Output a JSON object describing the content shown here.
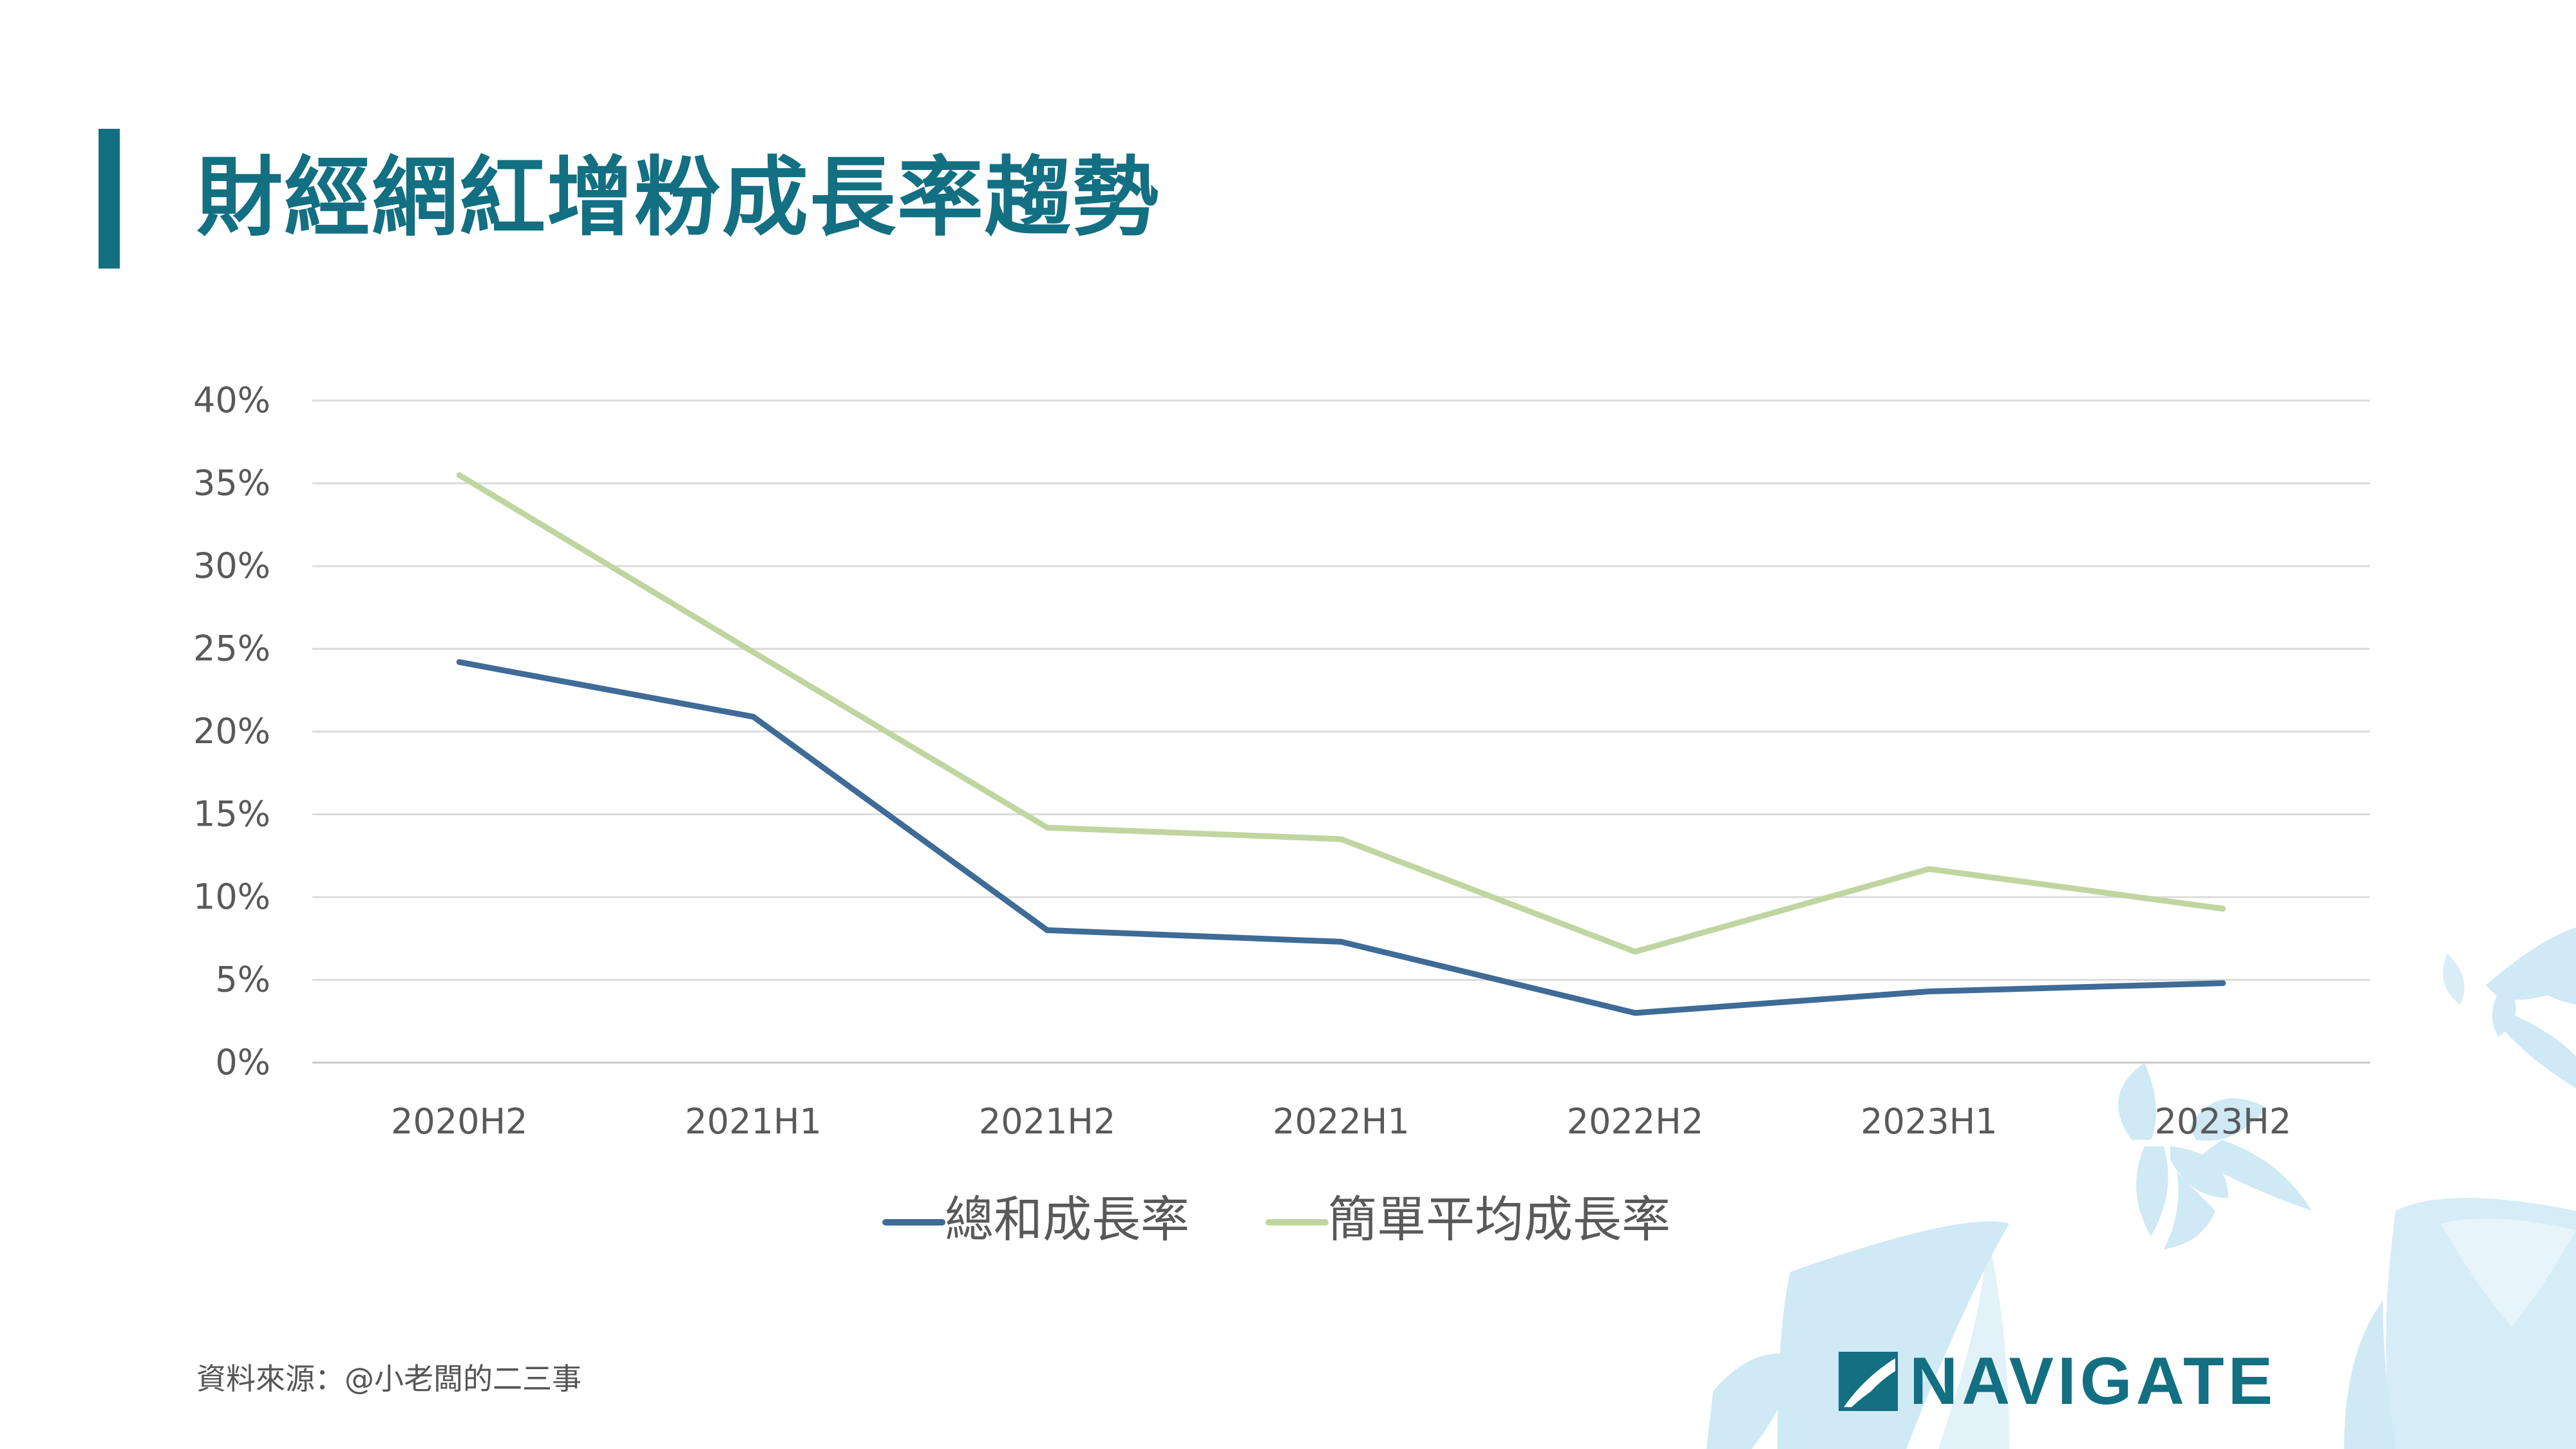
{
  "page": {
    "title": "財經網紅增粉成長率趨勢",
    "source": "資料來源：@小老闆的二三事",
    "logo_text": "NAVIGATE",
    "accent_color": "#136f82",
    "decor_color": "#cfe9f5"
  },
  "chart_data": {
    "type": "line",
    "title": "",
    "xlabel": "",
    "ylabel": "",
    "categories": [
      "2020H2",
      "2021H1",
      "2021H2",
      "2022H1",
      "2022H2",
      "2023H1",
      "2023H2"
    ],
    "y_ticks": [
      "0%",
      "5%",
      "10%",
      "15%",
      "20%",
      "25%",
      "30%",
      "35%",
      "40%"
    ],
    "ylim": [
      0,
      40
    ],
    "grid": true,
    "legend_position": "bottom",
    "series": [
      {
        "name": "總和成長率",
        "color": "#3f6b97",
        "values": [
          24.2,
          20.9,
          8.0,
          7.3,
          3.0,
          4.3,
          4.8
        ]
      },
      {
        "name": "簡單平均成長率",
        "color": "#c1d5a1",
        "values": [
          35.5,
          24.8,
          14.2,
          13.5,
          6.7,
          11.7,
          9.3
        ]
      }
    ]
  }
}
